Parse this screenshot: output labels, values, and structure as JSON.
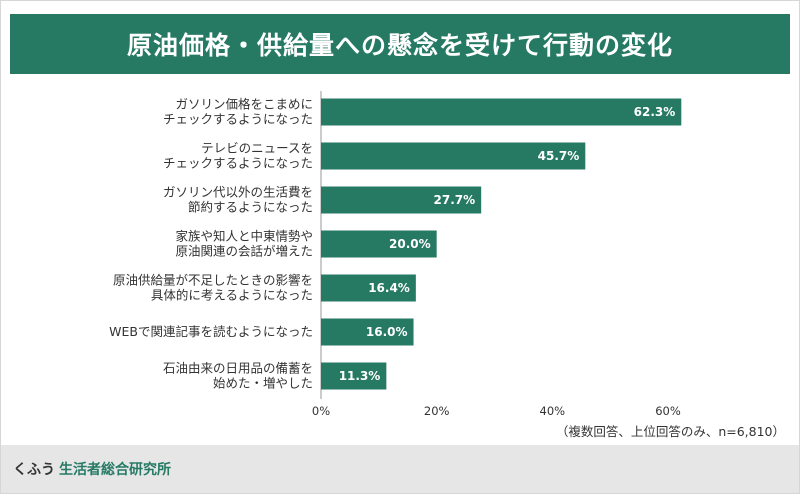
{
  "chart_data": {
    "type": "bar",
    "orientation": "horizontal",
    "title": "原油価格・供給量への懸念を受けて行動の変化",
    "categories": [
      [
        "ガソリン価格をこまめに",
        "チェックするようになった"
      ],
      [
        "テレビのニュースを",
        "チェックするようになった"
      ],
      [
        "ガソリン代以外の生活費を",
        "節約するようになった"
      ],
      [
        "家族や知人と中東情勢や",
        "原油関連の会話が増えた"
      ],
      [
        "原油供給量が不足したときの影響を",
        "具体的に考えるようになった"
      ],
      [
        "WEBで関連記事を読むようになった"
      ],
      [
        "石油由来の日用品の備蓄を",
        "始めた・増やした"
      ]
    ],
    "values": [
      62.3,
      45.7,
      27.7,
      20.0,
      16.4,
      16.0,
      11.3
    ],
    "value_labels": [
      "62.3%",
      "45.7%",
      "27.7%",
      "20.0%",
      "16.4%",
      "16.0%",
      "11.3%"
    ],
    "xticks": [
      0,
      20,
      40,
      60
    ],
    "xtick_labels": [
      "0%",
      "20%",
      "40%",
      "60%"
    ],
    "xlim": [
      0,
      80
    ],
    "bar_color": "#267a63",
    "note": "（複数回答、上位回答のみ、n=6,810）"
  },
  "footer": {
    "brand_prefix": "くふう",
    "brand_name": "生活者総合研究所"
  }
}
